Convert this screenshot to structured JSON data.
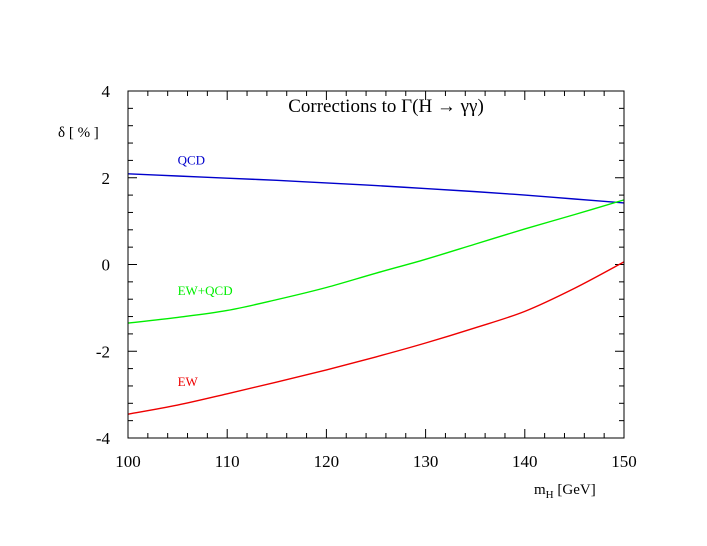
{
  "chart_data": {
    "type": "line",
    "title": "Corrections to Γ(H → γγ)",
    "xlabel": {
      "main": "m",
      "sub": "H",
      "rest": " [GeV]"
    },
    "ylabel": "δ [ % ]",
    "xlim": [
      100,
      150
    ],
    "ylim": [
      -4,
      4
    ],
    "x_ticks": [
      100,
      110,
      120,
      130,
      140,
      150
    ],
    "y_ticks": [
      -4,
      -2,
      0,
      2,
      4
    ],
    "x_minor_step": 2,
    "y_minor_step": 0.4,
    "grid": false,
    "legend": "inline labels",
    "series": [
      {
        "name": "QCD",
        "color": "#0000cc",
        "label_at": [
          105,
          2.3
        ],
        "x": [
          100,
          105,
          110,
          115,
          120,
          125,
          130,
          135,
          140,
          145,
          150
        ],
        "y": [
          2.09,
          2.04,
          1.99,
          1.94,
          1.88,
          1.82,
          1.75,
          1.68,
          1.6,
          1.51,
          1.42
        ]
      },
      {
        "name": "EW+QCD",
        "color": "#00ee00",
        "label_at": [
          105,
          -0.7
        ],
        "x": [
          100,
          105,
          110,
          115,
          120,
          125,
          130,
          135,
          140,
          145,
          150
        ],
        "y": [
          -1.35,
          -1.22,
          -1.06,
          -0.81,
          -0.53,
          -0.2,
          0.12,
          0.47,
          0.82,
          1.15,
          1.49
        ]
      },
      {
        "name": "EW",
        "color": "#ee0000",
        "label_at": [
          105,
          -2.8
        ],
        "x": [
          100,
          105,
          110,
          115,
          120,
          125,
          130,
          135,
          140,
          145,
          150
        ],
        "y": [
          -3.45,
          -3.24,
          -2.98,
          -2.71,
          -2.43,
          -2.13,
          -1.81,
          -1.46,
          -1.08,
          -0.55,
          0.06
        ]
      }
    ]
  }
}
